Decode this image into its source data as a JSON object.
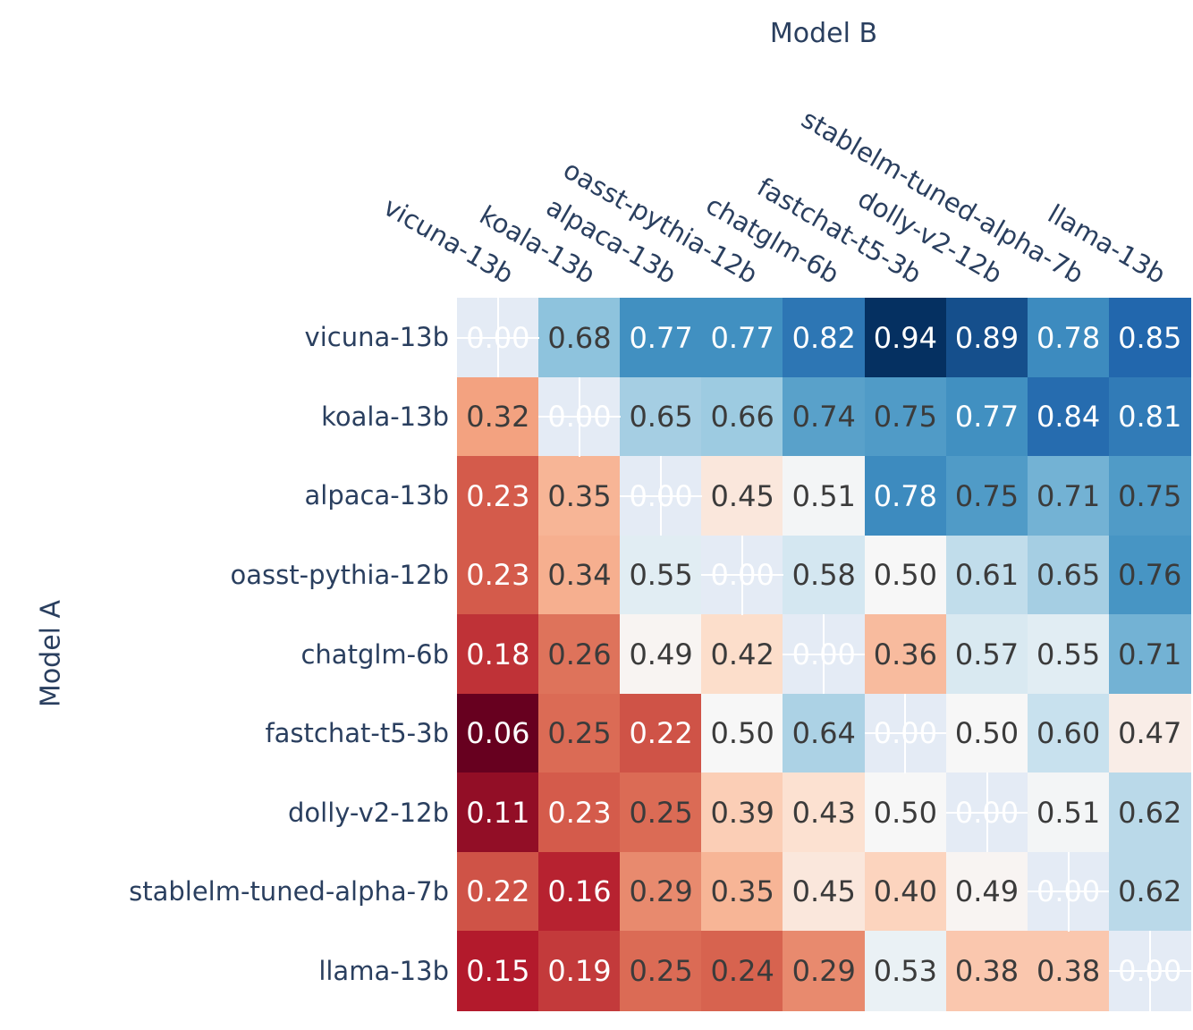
{
  "chart_data": {
    "type": "heatmap",
    "title": "",
    "x_axis": {
      "title": "Model B",
      "side": "top",
      "tick_angle_deg": 30,
      "labels": [
        "vicuna-13b",
        "koala-13b",
        "alpaca-13b",
        "oasst-pythia-12b",
        "chatglm-6b",
        "fastchat-t5-3b",
        "dolly-v2-12b",
        "stablelm-tuned-alpha-7b",
        "llama-13b"
      ]
    },
    "y_axis": {
      "title": "Model A",
      "labels": [
        "vicuna-13b",
        "koala-13b",
        "alpaca-13b",
        "oasst-pythia-12b",
        "chatglm-6b",
        "fastchat-t5-3b",
        "dolly-v2-12b",
        "stablelm-tuned-alpha-7b",
        "llama-13b"
      ]
    },
    "values": [
      [
        0.0,
        0.68,
        0.77,
        0.77,
        0.82,
        0.94,
        0.89,
        0.78,
        0.85
      ],
      [
        0.32,
        0.0,
        0.65,
        0.66,
        0.74,
        0.75,
        0.77,
        0.84,
        0.81
      ],
      [
        0.23,
        0.35,
        0.0,
        0.45,
        0.51,
        0.78,
        0.75,
        0.71,
        0.75
      ],
      [
        0.23,
        0.34,
        0.55,
        0.0,
        0.58,
        0.5,
        0.61,
        0.65,
        0.76
      ],
      [
        0.18,
        0.26,
        0.49,
        0.42,
        0.0,
        0.36,
        0.57,
        0.55,
        0.71
      ],
      [
        0.06,
        0.25,
        0.22,
        0.5,
        0.64,
        0.0,
        0.5,
        0.6,
        0.47
      ],
      [
        0.11,
        0.23,
        0.25,
        0.39,
        0.43,
        0.5,
        0.0,
        0.51,
        0.62
      ],
      [
        0.22,
        0.16,
        0.29,
        0.35,
        0.45,
        0.4,
        0.49,
        0.0,
        0.62
      ],
      [
        0.15,
        0.19,
        0.25,
        0.24,
        0.29,
        0.53,
        0.38,
        0.38,
        0.0
      ]
    ],
    "value_decimals": 2,
    "zmin": 0.06,
    "zmax": 0.94,
    "diagonal_is_nan": true,
    "grid": true,
    "legend": "none",
    "colorscale": {
      "name": "RdBu",
      "stops": [
        [
          0.0,
          "#67001f"
        ],
        [
          0.1,
          "#b2182b"
        ],
        [
          0.2,
          "#d6604d"
        ],
        [
          0.3,
          "#f4a582"
        ],
        [
          0.4,
          "#fddbc7"
        ],
        [
          0.5,
          "#f7f7f7"
        ],
        [
          0.6,
          "#d1e5f0"
        ],
        [
          0.7,
          "#92c5de"
        ],
        [
          0.8,
          "#4393c3"
        ],
        [
          0.9,
          "#2166ac"
        ],
        [
          1.0,
          "#053061"
        ]
      ]
    },
    "style": {
      "plot_bg": "#e4ebf5",
      "gridline_color": "#ffffff",
      "tick_label_color": "#2a3f5f",
      "axis_title_color": "#2a3f5f",
      "cell_text_dark": "#3b3b3b",
      "cell_text_light": "#ffffff",
      "white_text_low_max": 0.235,
      "white_text_high_min": 0.765
    }
  }
}
